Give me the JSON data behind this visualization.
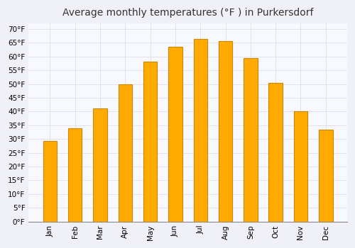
{
  "title": "Average monthly temperatures (°F ) in Purkersdorf",
  "months": [
    "Jan",
    "Feb",
    "Mar",
    "Apr",
    "May",
    "Jun",
    "Jul",
    "Aug",
    "Sep",
    "Oct",
    "Nov",
    "Dec"
  ],
  "values": [
    29.3,
    33.8,
    41.2,
    50.0,
    58.1,
    63.5,
    66.4,
    65.5,
    59.5,
    50.4,
    40.1,
    33.3
  ],
  "bar_color": "#FFAA00",
  "bar_edge_color": "#CC8800",
  "background_color": "#F0F0F8",
  "plot_bg_color": "#F8F8FF",
  "grid_color": "#DDDDEE",
  "ytick_min": 0,
  "ytick_max": 70,
  "ytick_step": 5,
  "title_fontsize": 10,
  "tick_fontsize": 7.5,
  "font_family": "DejaVu Sans"
}
